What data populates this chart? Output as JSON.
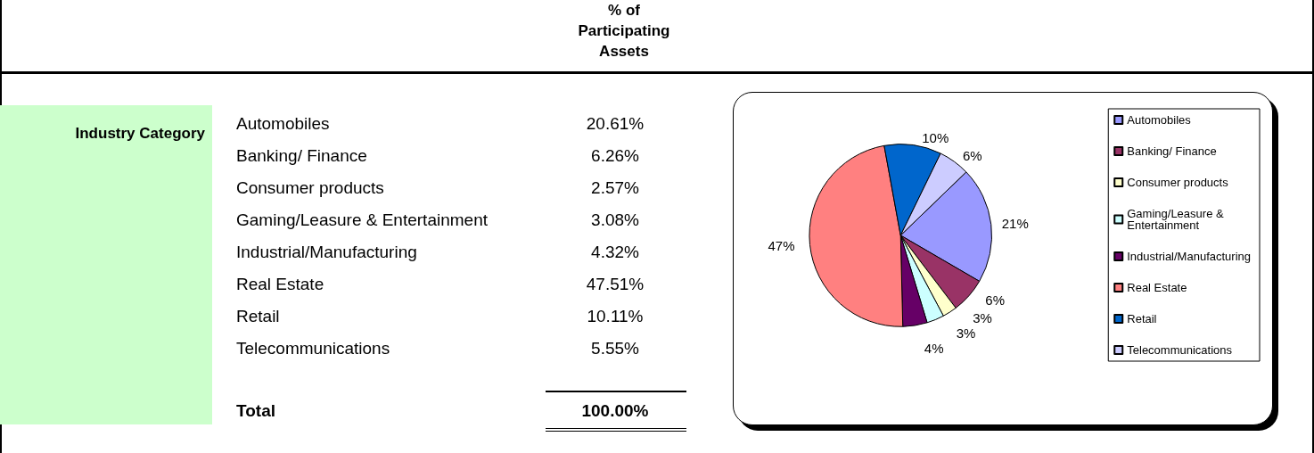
{
  "chart_data": {
    "type": "pie",
    "categories": [
      "Automobiles",
      "Banking/ Finance",
      "Consumer products",
      "Gaming/Leasure & Entertainment",
      "Industrial/Manufacturing",
      "Real Estate",
      "Retail",
      "Telecommunications"
    ],
    "values": [
      20.61,
      6.26,
      2.57,
      3.08,
      4.32,
      47.51,
      10.11,
      5.55
    ],
    "colors": [
      "#9999ff",
      "#993366",
      "#ffffcc",
      "#ccffff",
      "#660066",
      "#ff8080",
      "#0066cc",
      "#ccccff"
    ],
    "legend": "right",
    "annotations": [
      "% of Participating Assets",
      "Industry Category",
      "Total",
      "100.00%",
      {
        "text": "20.61%",
        "x": "Automobiles"
      },
      {
        "text": "6.26%",
        "x": "Banking/ Finance"
      },
      {
        "text": "2.57%",
        "x": "Consumer products"
      },
      {
        "text": "3.08%",
        "x": "Gaming/Leasure & Entertainment"
      },
      {
        "text": "4.32%",
        "x": "Industrial/Manufacturing"
      },
      {
        "text": "47.51%",
        "x": "Real Estate"
      },
      {
        "text": "10.11%",
        "x": "Retail"
      },
      {
        "text": "5.55%",
        "x": "Telecommunications"
      },
      {
        "text": "21%",
        "x": "Automobiles"
      },
      {
        "text": "6%",
        "x": "Banking/ Finance"
      },
      {
        "text": "3%",
        "x": "Consumer products"
      },
      {
        "text": "3%",
        "x": "Gaming/Leasure & Entertainment"
      },
      {
        "text": "4%",
        "x": "Industrial/Manufacturing"
      },
      {
        "text": "47%",
        "x": "Real Estate"
      },
      {
        "text": "10%",
        "x": "Retail"
      },
      {
        "text": "6%",
        "x": "Telecommunications"
      }
    ]
  }
}
